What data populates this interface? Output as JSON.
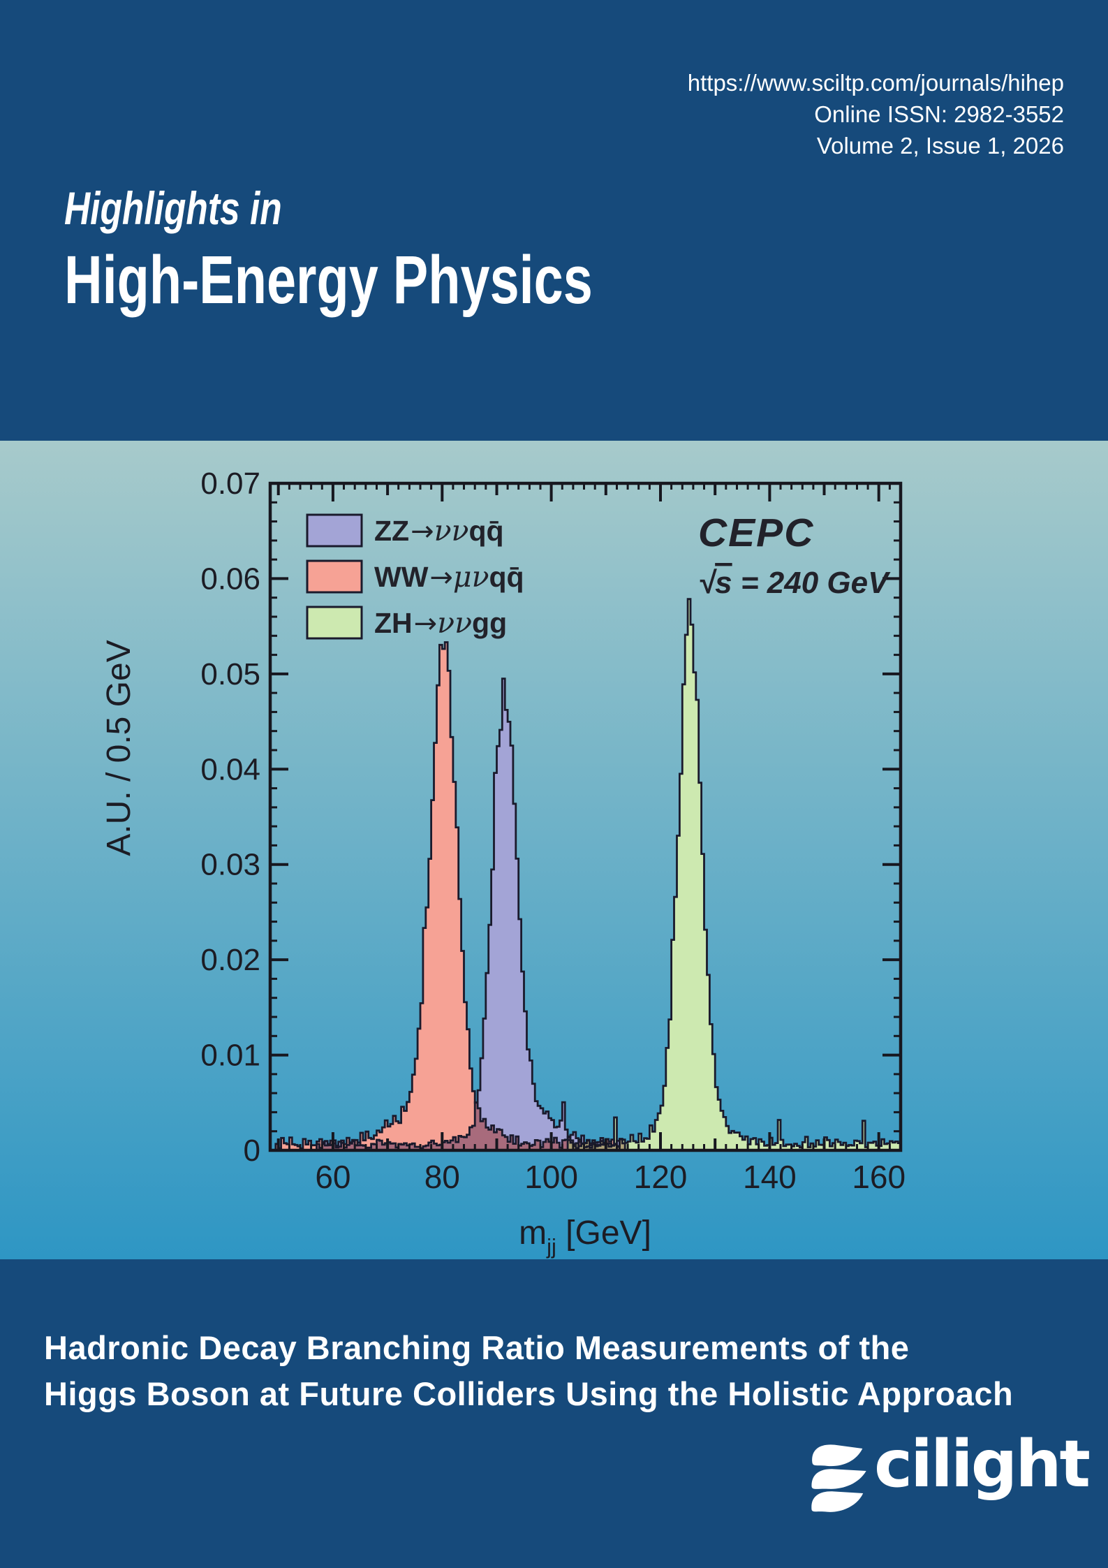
{
  "header": {
    "url": "https://www.sciltp.com/journals/hihep",
    "issn": "Online ISSN: 2982-3552",
    "volume": "Volume 2, Issue 1, 2026",
    "title_line1": "Highlights in",
    "title_line2": "High-Energy Physics"
  },
  "chart_data": {
    "type": "histogram",
    "title": "",
    "ylabel": "A.U. / 0.5 GeV",
    "xlabel_parts": {
      "base": "m",
      "sub": "jj",
      "rest": " [GeV]"
    },
    "xlim": [
      48.5,
      164
    ],
    "ylim": [
      0,
      0.07
    ],
    "xticks": [
      60,
      80,
      100,
      120,
      140,
      160
    ],
    "yticks": [
      {
        "v": 0,
        "label": "0"
      },
      {
        "v": 0.01,
        "label": "0.01"
      },
      {
        "v": 0.02,
        "label": "0.02"
      },
      {
        "v": 0.03,
        "label": "0.03"
      },
      {
        "v": 0.04,
        "label": "0.04"
      },
      {
        "v": 0.05,
        "label": "0.05"
      },
      {
        "v": 0.06,
        "label": "0.06"
      },
      {
        "v": 0.07,
        "label": "0.07"
      }
    ],
    "x_minor_step": 2,
    "y_minor_step": 0.002,
    "bin_width": 0.5,
    "grid": false,
    "legend_position": "top-left-inside",
    "annotation": {
      "line1": "CEPC",
      "sqrt_sym": "√",
      "sqrt_var": "s",
      "sqrt_rest": " = 240 GeV"
    },
    "series": [
      {
        "id": "ZZ",
        "legend_parts": [
          {
            "t": "ZZ",
            "k": "lat"
          },
          {
            "t": "→",
            "k": "arr"
          },
          {
            "t": "νν",
            "k": "grk"
          },
          {
            "t": "qq̄",
            "k": "lat"
          }
        ],
        "fill": "#A3A4D6",
        "outline": "#1A1A2C",
        "peak": 91.4,
        "sigma": 2.2,
        "amplitude": 0.0445,
        "tail": {
          "mean": 95.0,
          "sigma": 5.5,
          "amp": 0.004
        },
        "floor": {
          "from": 57,
          "to": 112.5,
          "level": 0.0006
        },
        "peak_height": 0.048
      },
      {
        "id": "WW",
        "legend_parts": [
          {
            "t": "WW",
            "k": "lat"
          },
          {
            "t": "→",
            "k": "arr"
          },
          {
            "t": "μν",
            "k": "grk"
          },
          {
            "t": "qq̄",
            "k": "lat"
          }
        ],
        "fill": "#F6A295",
        "outline": "#1A1A2C",
        "peak": 80.3,
        "sigma": 2.35,
        "amplitude": 0.0485,
        "tail": {
          "mean": 79.0,
          "sigma": 6.5,
          "amp": 0.0045
        },
        "floor": {
          "from": 49.5,
          "to": 113.5,
          "level": 0.0007
        },
        "peak_height": 0.053
      },
      {
        "id": "ZH",
        "legend_parts": [
          {
            "t": "ZH",
            "k": "lat"
          },
          {
            "t": "→",
            "k": "arr"
          },
          {
            "t": "νν",
            "k": "grk"
          },
          {
            "t": "gg",
            "k": "lat"
          }
        ],
        "fill": "#CDE9B0",
        "outline": "#1A1A2C",
        "peak": 125.4,
        "sigma": 2.05,
        "amplitude": 0.0518,
        "tail": {
          "mean": 126.0,
          "sigma": 4.8,
          "amp": 0.0042
        },
        "floor": {
          "from": 103,
          "to": 163.8,
          "level": 0.0007
        },
        "peak_height": 0.0565
      }
    ],
    "overlap_colors": {
      "ww_zz": "#A86B7C",
      "zh_other": "#AFA379"
    },
    "background_gradient": {
      "top": "#A7CACB",
      "bottom": "#2E96C4"
    }
  },
  "footer": {
    "title_line1": "Hadronic Decay Branching Ratio Measurements of the",
    "title_line2": "Higgs Boson at Future Colliders Using the Holistic Approach",
    "logo_text": "cilight"
  },
  "colors": {
    "band_blue": "#164A7B",
    "chart_text": "#1C1C24",
    "text_white": "#FFFFFF"
  }
}
